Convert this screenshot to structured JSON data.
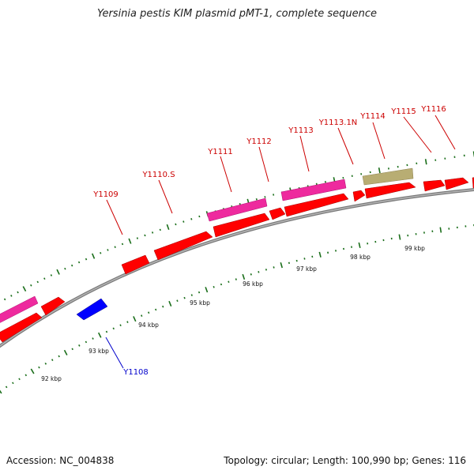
{
  "title": "Yersinia pestis KIM plasmid pMT-1, complete sequence",
  "footer": {
    "accession": "Accession: NC_004838",
    "summary": "Topology: circular; Length: 100,990 bp; Genes: 116"
  },
  "colors": {
    "backbone": "#888888",
    "forward_gene": "#ff0000",
    "reverse_gene": "#0000ff",
    "orf_bar": "#ee2a9e",
    "other_bar": "#b8ad73",
    "tick": "#1a6e1a",
    "label_forward": "#cc0000",
    "label_reverse": "#0000cc"
  },
  "ticks": [
    {
      "label": "92 kbp"
    },
    {
      "label": "93 kbp"
    },
    {
      "label": "94 kbp"
    },
    {
      "label": "95 kbp"
    },
    {
      "label": "96 kbp"
    },
    {
      "label": "97 kbp"
    },
    {
      "label": "98 kbp"
    },
    {
      "label": "99 kbp"
    }
  ],
  "gene_labels": [
    {
      "text": "Y1109",
      "strand": "forward"
    },
    {
      "text": "Y1110.S",
      "strand": "forward"
    },
    {
      "text": "Y1111",
      "strand": "forward"
    },
    {
      "text": "Y1112",
      "strand": "forward"
    },
    {
      "text": "Y1113",
      "strand": "forward"
    },
    {
      "text": "Y1113.1N",
      "strand": "forward"
    },
    {
      "text": "Y1114",
      "strand": "forward"
    },
    {
      "text": "Y1115",
      "strand": "forward"
    },
    {
      "text": "Y1116",
      "strand": "forward"
    },
    {
      "text": "Y1108",
      "strand": "reverse"
    }
  ]
}
